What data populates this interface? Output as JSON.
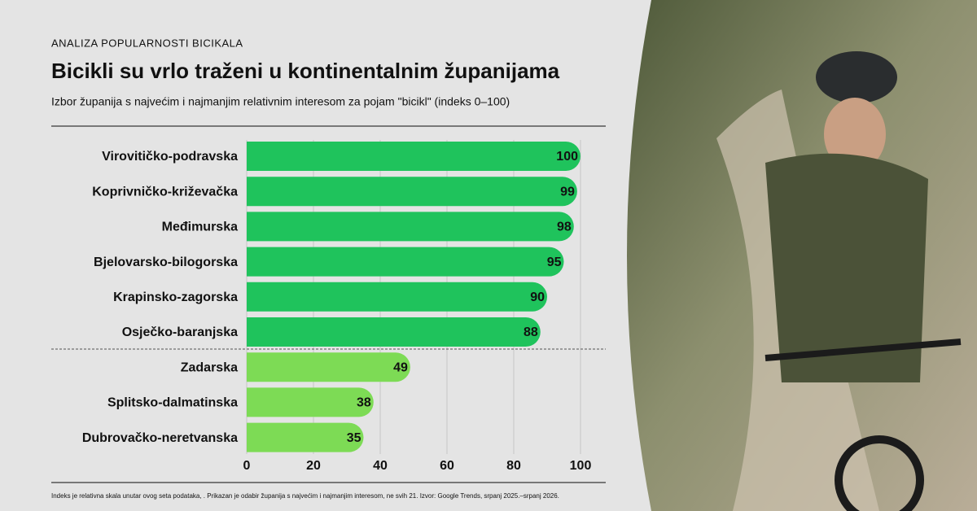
{
  "chart_data": {
    "type": "hbar",
    "kicker": "ANALIZA POPULARNOSTI BICIKALA",
    "title": "Bicikli su vrlo traženi u kontinentalnim županijama",
    "subtitle": "Izbor županija s najvećim i najmanjim relativnim interesom za pojam \"bicikl\" (indeks 0–100)",
    "categories": [
      "Virovitičko-podravska",
      "Koprivničko-križevačka",
      "Međimurska",
      "Bjelovarsko-bilogorska",
      "Krapinsko-zagorska",
      "Osječko-baranjska",
      "Zadarska",
      "Splitsko-dalmatinska",
      "Dubrovačko-neretvanska"
    ],
    "values": [
      100,
      99,
      98,
      95,
      90,
      88,
      49,
      38,
      35
    ],
    "colors": [
      "#1fc35c",
      "#1fc35c",
      "#1fc35c",
      "#1fc35c",
      "#1fc35c",
      "#1fc35c",
      "#7ddb55",
      "#7ddb55",
      "#7ddb55"
    ],
    "xlim": [
      0,
      100
    ],
    "xticks": [
      0,
      20,
      40,
      60,
      80,
      100
    ],
    "grid": true,
    "footnote": "Indeks je relativna skala unutar ovog seta podataka, . Prikazan je odabir županija s najvećim i najmanjim interesom, ne svih 21. Izvor: Google Trends, srpanj 2025.–srpanj 2026."
  }
}
